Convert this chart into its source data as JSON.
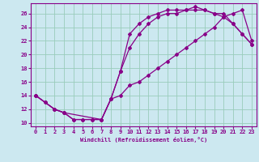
{
  "xlabel": "Windchill (Refroidissement éolien,°C)",
  "bg_color": "#cce8f0",
  "line_color": "#880088",
  "grid_color": "#99ccbb",
  "xlim": [
    -0.5,
    23.5
  ],
  "ylim": [
    9.5,
    27.5
  ],
  "xticks": [
    0,
    1,
    2,
    3,
    4,
    5,
    6,
    7,
    8,
    9,
    10,
    11,
    12,
    13,
    14,
    15,
    16,
    17,
    18,
    19,
    20,
    21,
    22,
    23
  ],
  "yticks": [
    10,
    12,
    14,
    16,
    18,
    20,
    22,
    24,
    26
  ],
  "line1_x": [
    0,
    1,
    2,
    3,
    4,
    5,
    6,
    7,
    8,
    9,
    10,
    11,
    12,
    13,
    14,
    15,
    16,
    17,
    18,
    19,
    20,
    21,
    22,
    23
  ],
  "line1_y": [
    14,
    13,
    12,
    11.5,
    10.5,
    10.5,
    10.5,
    10.5,
    13.5,
    17.5,
    23,
    24.5,
    25.5,
    26,
    26.5,
    26.5,
    26.5,
    27,
    26.5,
    26,
    25.5,
    24.5,
    23,
    21.5
  ],
  "line2_x": [
    0,
    1,
    2,
    3,
    4,
    5,
    6,
    7,
    8,
    9,
    10,
    11,
    12,
    13,
    14,
    15,
    16,
    17,
    18,
    19,
    20,
    21,
    22,
    23
  ],
  "line2_y": [
    14,
    13,
    12,
    11.5,
    10.5,
    10.5,
    10.5,
    10.5,
    13.5,
    17.5,
    21,
    23,
    24.5,
    25.5,
    26,
    26,
    26.5,
    26.5,
    26.5,
    26,
    26,
    24.5,
    23,
    21.5
  ],
  "line3_x": [
    0,
    2,
    3,
    7,
    8,
    9,
    10,
    11,
    12,
    13,
    14,
    15,
    16,
    17,
    18,
    19,
    20,
    21,
    22,
    23
  ],
  "line3_y": [
    14,
    12,
    11.5,
    10.5,
    13.5,
    14,
    15.5,
    16,
    17,
    18,
    19,
    20,
    21,
    22,
    23,
    24,
    25.5,
    26,
    26.5,
    22
  ]
}
